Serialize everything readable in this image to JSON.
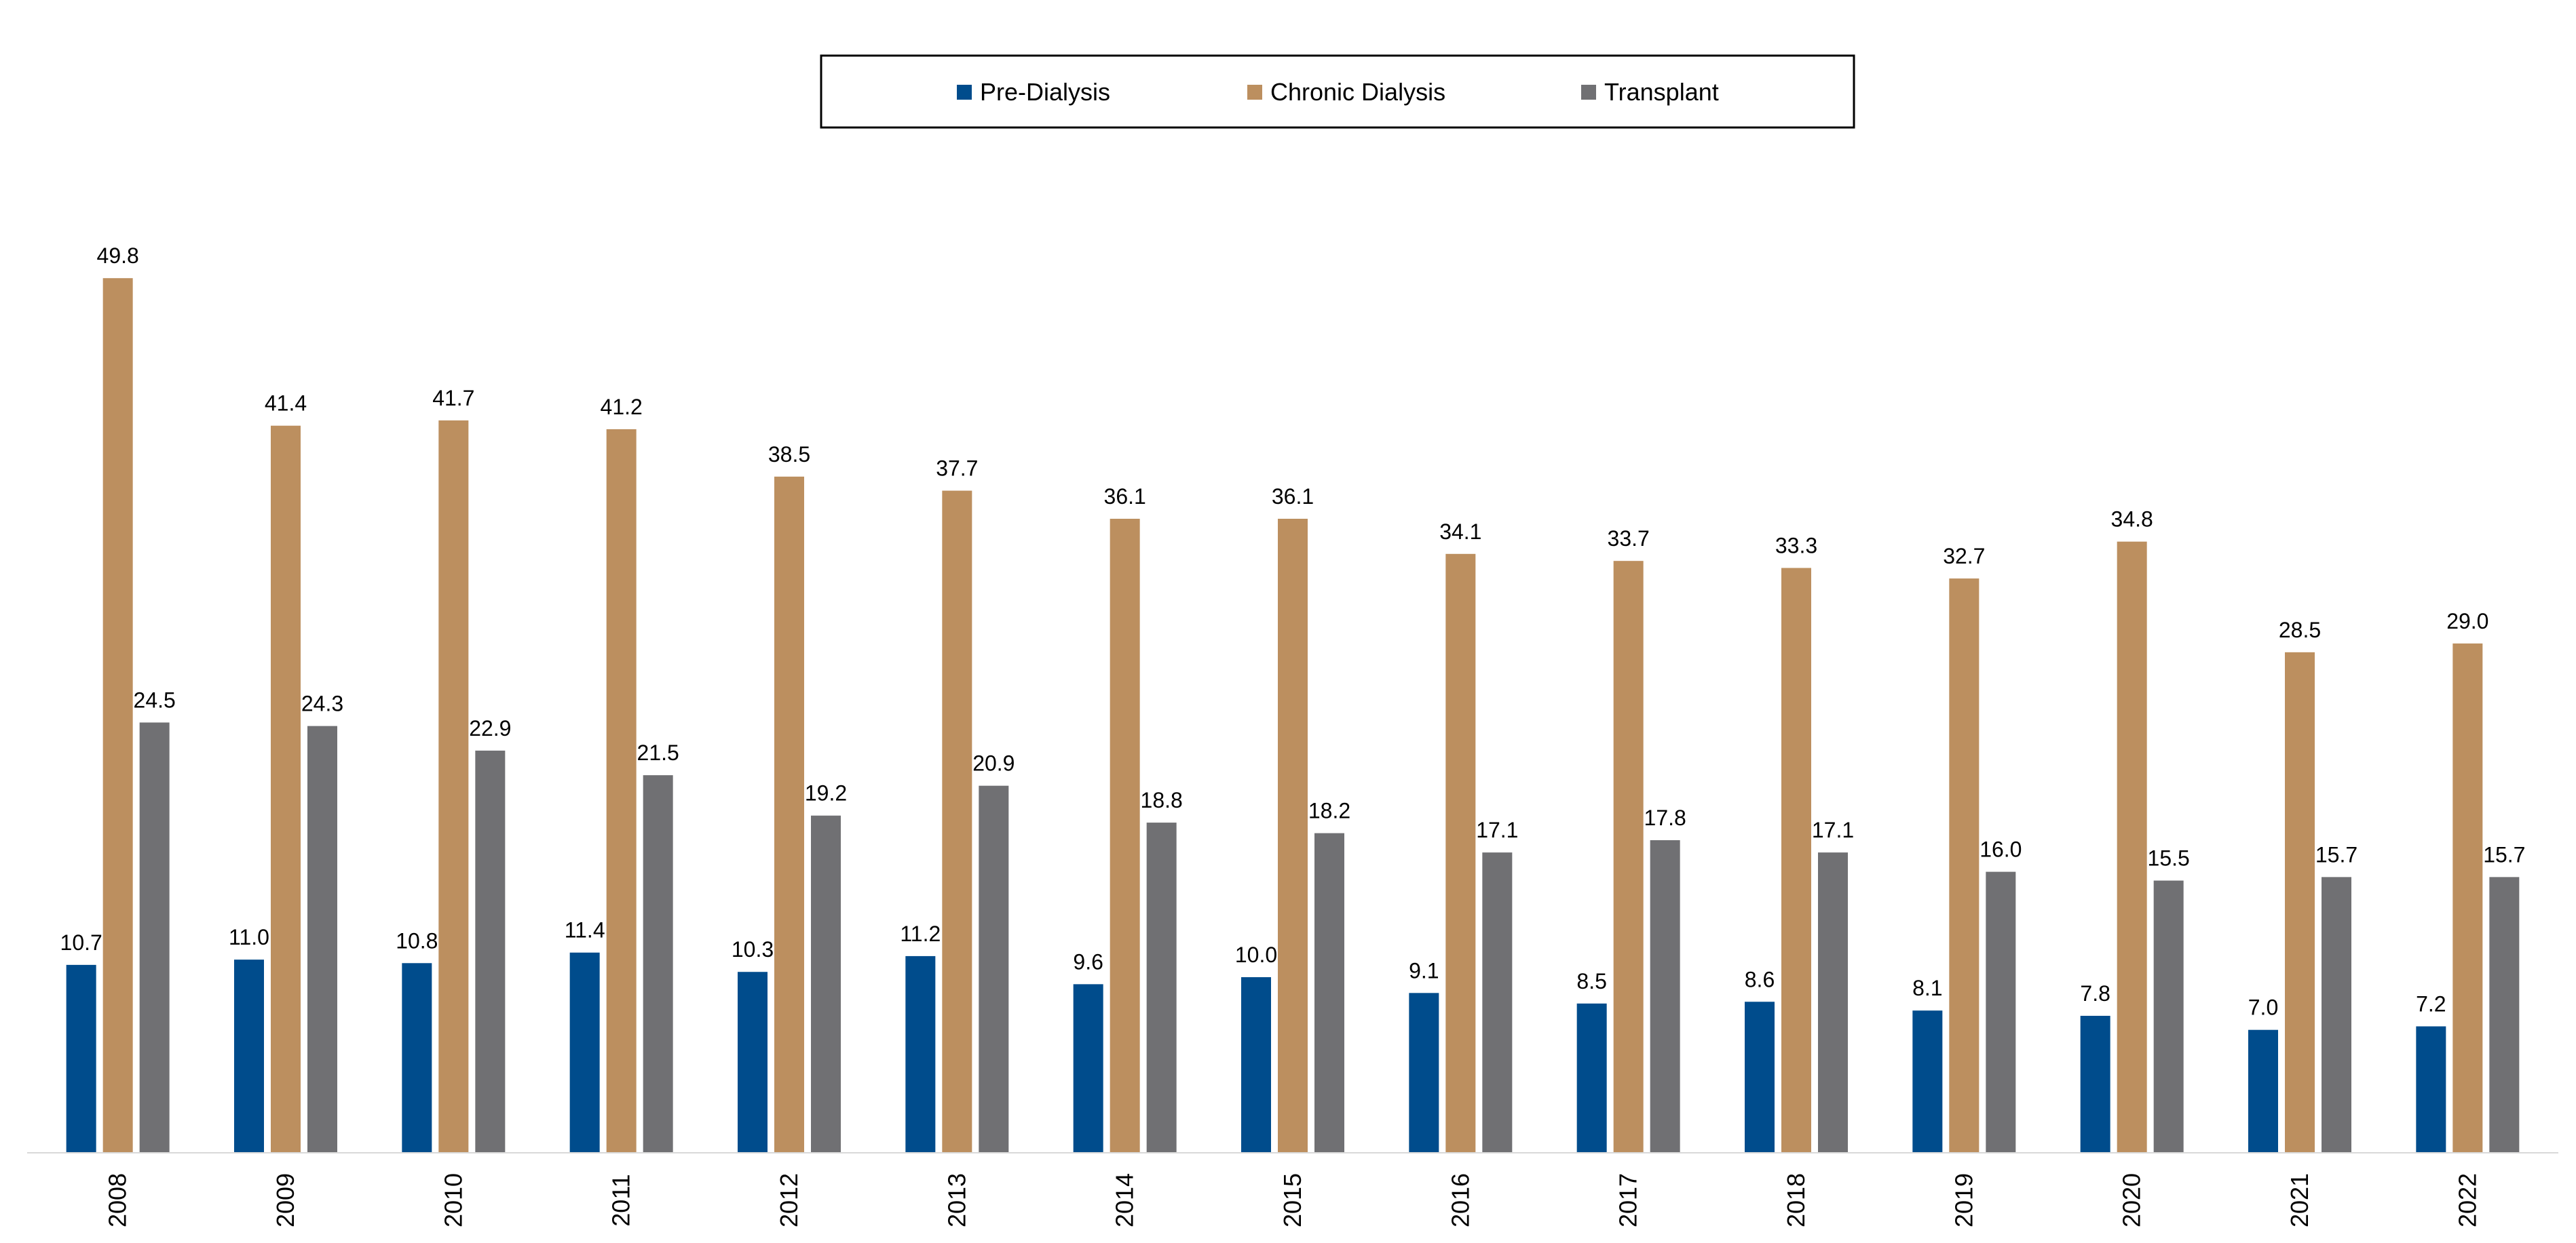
{
  "chart_data": {
    "type": "bar",
    "categories": [
      "2008",
      "2009",
      "2010",
      "2011",
      "2012",
      "2013",
      "2014",
      "2015",
      "2016",
      "2017",
      "2018",
      "2019",
      "2020",
      "2021",
      "2022"
    ],
    "series": [
      {
        "name": "Pre-Dialysis",
        "color": "#004C8C",
        "values": [
          10.7,
          11.0,
          10.8,
          11.4,
          10.3,
          11.2,
          9.6,
          10.0,
          9.1,
          8.5,
          8.6,
          8.1,
          7.8,
          7.0,
          7.2
        ]
      },
      {
        "name": "Chronic Dialysis",
        "color": "#BC8F5F",
        "values": [
          49.8,
          41.4,
          41.7,
          41.2,
          38.5,
          37.7,
          36.1,
          36.1,
          34.1,
          33.7,
          33.3,
          32.7,
          34.8,
          28.5,
          29.0
        ]
      },
      {
        "name": "Transplant",
        "color": "#707073",
        "values": [
          24.5,
          24.3,
          22.9,
          21.5,
          19.2,
          20.9,
          18.8,
          18.2,
          17.1,
          17.8,
          17.1,
          16.0,
          15.5,
          15.7,
          15.7
        ]
      }
    ],
    "ylim": [
      0,
      52
    ],
    "grid": false,
    "legend_position": "top-center",
    "x_tick_rotation": "vertical"
  }
}
